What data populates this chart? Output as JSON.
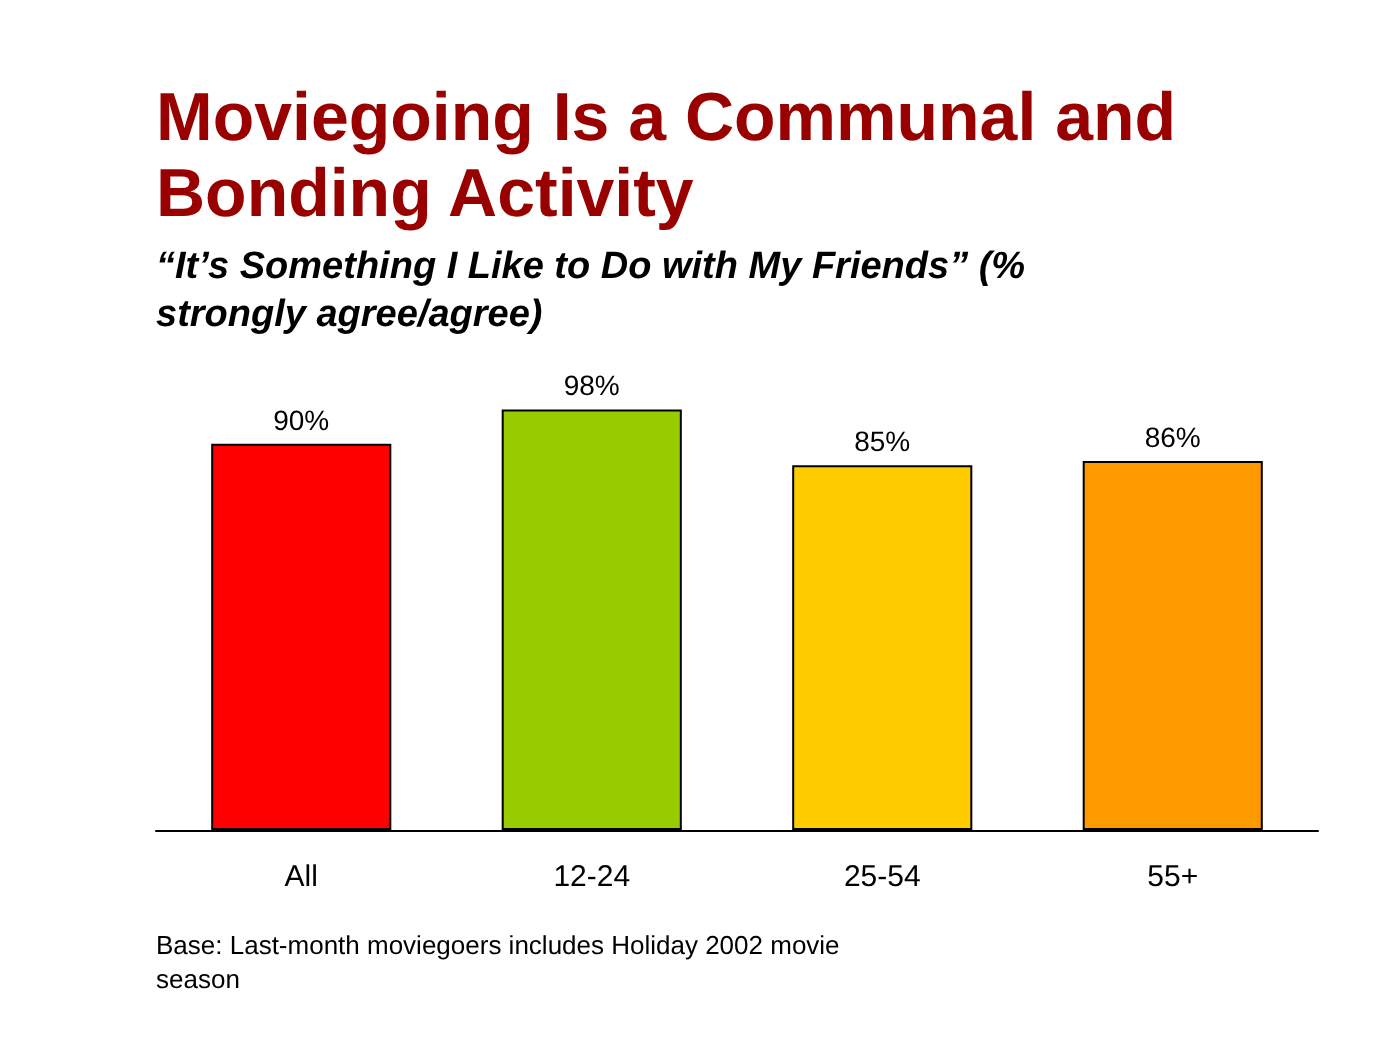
{
  "chart_data": {
    "type": "bar",
    "title": "Moviegoing Is a Communal and Bonding Activity",
    "subtitle": "“It’s Something I Like to Do with My Friends” (% strongly agree/agree)",
    "categories": [
      "All",
      "12-24",
      "25-54",
      "55+"
    ],
    "values": [
      90,
      98,
      85,
      86
    ],
    "colors": [
      "#ff0000",
      "#99cc00",
      "#ffcc00",
      "#ff9900"
    ],
    "value_labels": [
      "90%",
      "98%",
      "85%",
      "86%"
    ],
    "annotations": [
      "Base: Last-month moviegoers includes Holiday 2002 movie season"
    ]
  }
}
